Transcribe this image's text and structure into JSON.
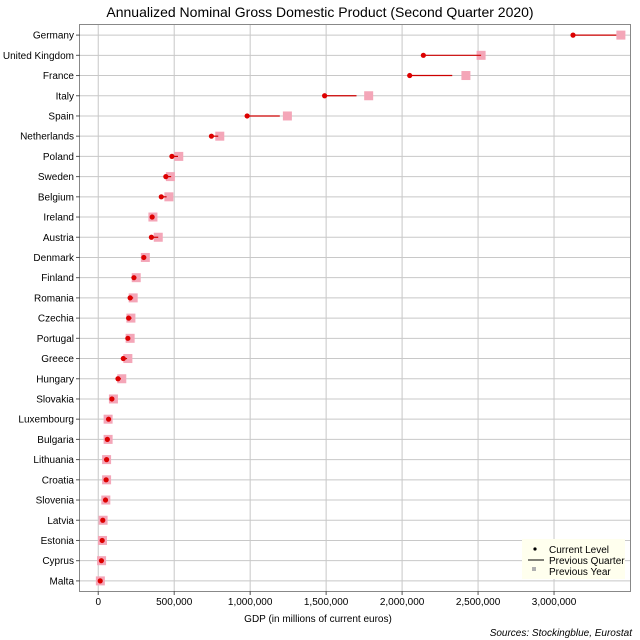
{
  "chart_data": {
    "type": "dot",
    "title": "Annualized Nominal Gross Domestic Product (Second Quarter 2020)",
    "xlabel": "GDP (in millions of current euros)",
    "source": "Sources: Stockingblue, Eurostat",
    "xlim": [
      -120000,
      3500000
    ],
    "xticks": [
      0,
      500000,
      1000000,
      1500000,
      2000000,
      2500000,
      3000000
    ],
    "xtick_labels": [
      "0",
      "500,000",
      "1,000,000",
      "1,500,000",
      "2,000,000",
      "2,500,000",
      "3,000,000"
    ],
    "grid": true,
    "legend_position": "bottom-right",
    "colors": {
      "current": "#dd0000",
      "previous_quarter": "#cc0000",
      "previous_year": "#f4a6b8",
      "legend_bg": "#ffffee",
      "grid": "#c8c8c8"
    },
    "legend": [
      "Current Level",
      "Previous Quarter",
      "Previous Year"
    ],
    "categories": [
      "Germany",
      "United Kingdom",
      "France",
      "Italy",
      "Spain",
      "Netherlands",
      "Poland",
      "Sweden",
      "Belgium",
      "Ireland",
      "Austria",
      "Denmark",
      "Finland",
      "Romania",
      "Czechia",
      "Portugal",
      "Greece",
      "Hungary",
      "Slovakia",
      "Luxembourg",
      "Bulgaria",
      "Lithuania",
      "Croatia",
      "Slovenia",
      "Latvia",
      "Estonia",
      "Cyprus",
      "Malta"
    ],
    "current_level": [
      3125000,
      2140000,
      2050000,
      1490000,
      980000,
      745000,
      485000,
      445000,
      415000,
      355000,
      350000,
      300000,
      235000,
      210000,
      200000,
      195000,
      165000,
      130000,
      90000,
      68000,
      60000,
      55000,
      52000,
      48000,
      30000,
      26000,
      21000,
      13000
    ],
    "previous_quarter": [
      3410000,
      2520000,
      2330000,
      1700000,
      1195000,
      790000,
      525000,
      480000,
      450000,
      365000,
      395000,
      315000,
      250000,
      230000,
      220000,
      205000,
      190000,
      150000,
      100000,
      70000,
      65000,
      58000,
      57000,
      51000,
      32000,
      28000,
      23000,
      14000
    ],
    "previous_year": [
      3440000,
      2520000,
      2420000,
      1780000,
      1245000,
      800000,
      530000,
      475000,
      465000,
      360000,
      395000,
      310000,
      250000,
      230000,
      215000,
      210000,
      195000,
      155000,
      100000,
      65000,
      65000,
      55000,
      55000,
      50000,
      32000,
      28000,
      22000,
      14000
    ]
  }
}
